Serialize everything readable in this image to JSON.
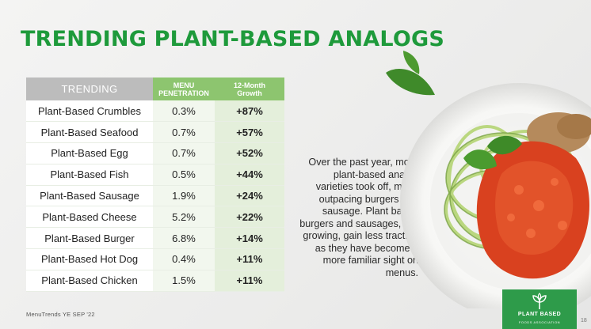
{
  "title": "TRENDING PLANT-BASED ANALOGS",
  "table": {
    "headers": {
      "trending": "TRENDING",
      "penetration_line1": "MENU",
      "penetration_line2": "PENETRATION",
      "growth_line1": "12-Month",
      "growth_line2": "Growth"
    },
    "rows": [
      {
        "name": "Plant-Based Crumbles",
        "penetration": "0.3%",
        "growth": "+87%"
      },
      {
        "name": "Plant-Based Seafood",
        "penetration": "0.7%",
        "growth": "+57%"
      },
      {
        "name": "Plant-Based Egg",
        "penetration": "0.7%",
        "growth": "+52%"
      },
      {
        "name": "Plant-Based Fish",
        "penetration": "0.5%",
        "growth": "+44%"
      },
      {
        "name": "Plant-Based Sausage",
        "penetration": "1.9%",
        "growth": "+24%"
      },
      {
        "name": "Plant-Based Cheese",
        "penetration": "5.2%",
        "growth": "+22%"
      },
      {
        "name": "Plant-Based Burger",
        "penetration": "6.8%",
        "growth": "+14%"
      },
      {
        "name": "Plant-Based Hot Dog",
        "penetration": "0.4%",
        "growth": "+11%"
      },
      {
        "name": "Plant-Based Chicken",
        "penetration": "1.5%",
        "growth": "+11%"
      }
    ]
  },
  "body_text": "Over the past year, more plant-based analog varieties took off, many outpacing burgers and sausage. Plant based burgers and sausages, still growing, gain less traction as they have become a more familiar sight on menus.",
  "source": "MenuTrends YE SEP '22",
  "page_number": "18",
  "logo": {
    "name": "PLANT BASED",
    "subtitle": "FOODS ASSOCIATION",
    "icon": "sprout-icon"
  },
  "colors": {
    "title_green": "#1e9a3b",
    "header_green": "#8dc56f",
    "header_gray": "#bcbcbc",
    "logo_green": "#2e9b4a"
  }
}
